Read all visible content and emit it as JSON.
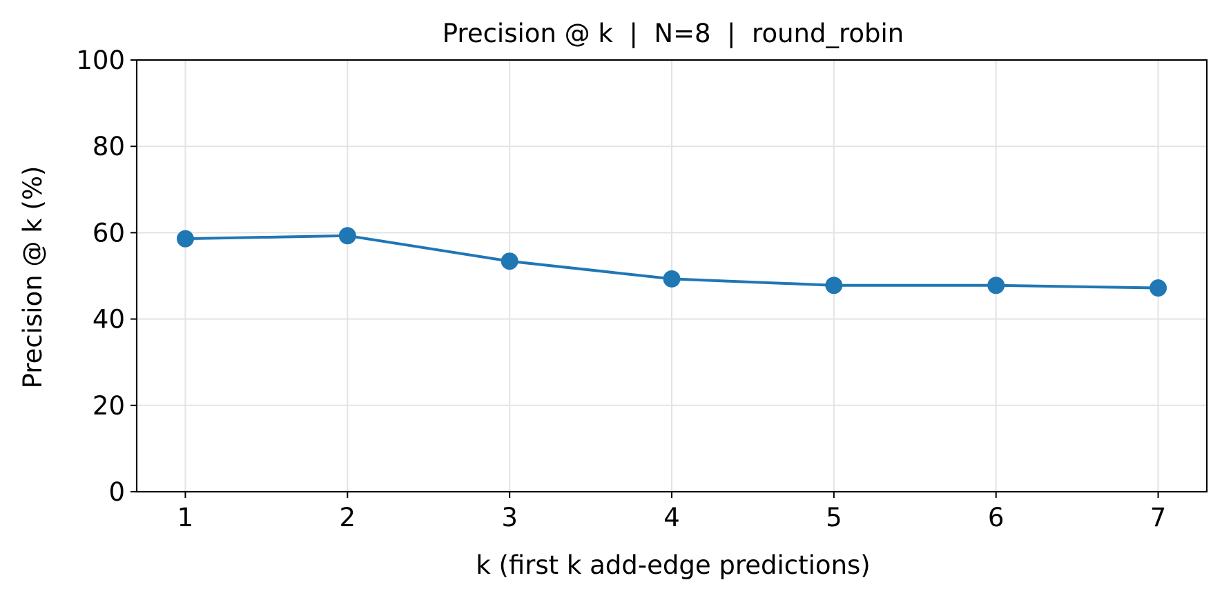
{
  "chart_data": {
    "type": "line",
    "title": "Precision @ k  |  N=8  |  round_robin",
    "xlabel": "k (first k add-edge predictions)",
    "ylabel": "Precision @ k (%)",
    "x": [
      1,
      2,
      3,
      4,
      5,
      6,
      7
    ],
    "xticks": [
      "1",
      "2",
      "3",
      "4",
      "5",
      "6",
      "7"
    ],
    "xlim": [
      0.7,
      7.3
    ],
    "ylim": [
      0,
      100
    ],
    "yticks": [
      "0",
      "20",
      "40",
      "60",
      "80",
      "100"
    ],
    "grid": true,
    "series": [
      {
        "values": [
          58.6,
          59.3,
          53.4,
          49.3,
          47.8,
          47.8,
          47.2
        ],
        "color": "#1f77b4",
        "marker": "circle"
      }
    ]
  }
}
